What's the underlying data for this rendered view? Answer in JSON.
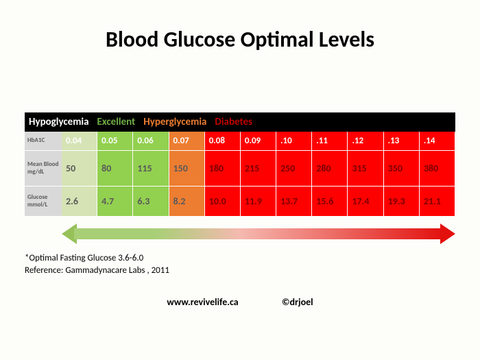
{
  "title": "Blood Glucose Optimal Levels",
  "categories": [
    {
      "label": "Hypoglycemia",
      "color": "#ffffff"
    },
    {
      "label": "Excellent",
      "color": "#70ad47"
    },
    {
      "label": "Hyperglycemia",
      "color": "#ed7d31"
    },
    {
      "label": "Diabetes",
      "color": "#c00000"
    }
  ],
  "row_headers": [
    "HbA1C",
    "Mean Blood mg/dL",
    "Glucose mmol/L"
  ],
  "columns": [
    {
      "hba1c": "0.04",
      "mgdl": "50",
      "mmol": "2.6",
      "bg": "#d6e3b5"
    },
    {
      "hba1c": "0.05",
      "mgdl": "80",
      "mmol": "4.7",
      "bg": "#92d050"
    },
    {
      "hba1c": "0.06",
      "mgdl": "115",
      "mmol": "6.3",
      "bg": "#92d050"
    },
    {
      "hba1c": "0.07",
      "mgdl": "150",
      "mmol": "8.2",
      "bg": "#ed7d31"
    },
    {
      "hba1c": "0.08",
      "mgdl": "180",
      "mmol": "10.0",
      "bg": "#ff0000"
    },
    {
      "hba1c": "0.09",
      "mgdl": "215",
      "mmol": "11.9",
      "bg": "#ff0000"
    },
    {
      "hba1c": ".10",
      "mgdl": "250",
      "mmol": "13.7",
      "bg": "#ff0000"
    },
    {
      "hba1c": ".11",
      "mgdl": "280",
      "mmol": "15.6",
      "bg": "#ff0000"
    },
    {
      "hba1c": ".12",
      "mgdl": "315",
      "mmol": "17.4",
      "bg": "#ff0000"
    },
    {
      "hba1c": ".13",
      "mgdl": "350",
      "mmol": "19.3",
      "bg": "#ff0000"
    },
    {
      "hba1c": ".14",
      "mgdl": "380",
      "mmol": "21.1",
      "bg": "#ff0000"
    }
  ],
  "arrow": {
    "left_color": "#96c159",
    "right_color": "#e3110e",
    "gradient_stops": [
      "#a8cf76",
      "#f5b9b0",
      "#e3110e"
    ]
  },
  "notes": {
    "line1": "*Optimal Fasting Glucose 3.6-6.0",
    "line2": "Reference: Gammadynacare Labs , 2011"
  },
  "footer": {
    "site": "www.revivelife.ca",
    "credit": "©drjoel"
  },
  "style": {
    "title_fontsize": 32,
    "cell_border_color": "#ffffff",
    "rowhead_bg": "#d9d9d9",
    "rowhead_text": "#595959",
    "data_text_dark": "#595959",
    "data_text_light": "#ffffff",
    "background": "#fdfdfa"
  }
}
